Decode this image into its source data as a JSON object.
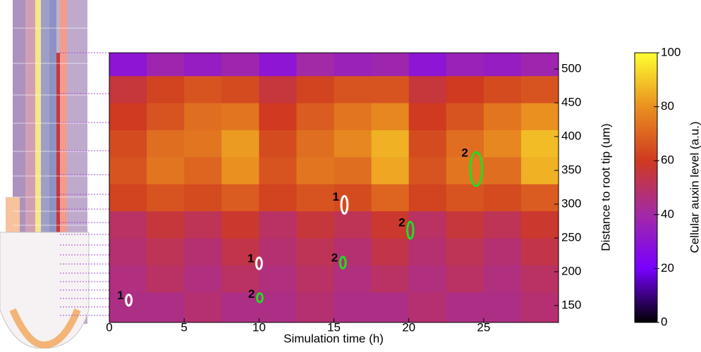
{
  "chart_data": {
    "type": "heatmap",
    "xlabel": "Simulation time (h)",
    "ylabel": "Distance to root tip (um)",
    "xlim": [
      0,
      30
    ],
    "xticks": [
      0,
      5,
      10,
      15,
      20,
      25
    ],
    "ylim": [
      125,
      524
    ],
    "yticks": [
      150,
      200,
      250,
      300,
      350,
      400,
      450,
      500
    ],
    "xbins": [
      0,
      2.5,
      5,
      7.5,
      10,
      12.5,
      15,
      17.5,
      20,
      22.5,
      25,
      27.5,
      30
    ],
    "ybins": [
      125,
      170,
      210,
      250,
      290,
      330,
      370,
      410,
      450,
      490,
      524
    ],
    "z": [
      [
        45,
        45,
        48,
        45,
        45,
        48,
        45,
        45,
        48,
        45,
        45,
        48
      ],
      [
        46,
        50,
        46,
        50,
        46,
        50,
        46,
        50,
        46,
        50,
        46,
        50
      ],
      [
        48,
        52,
        48,
        54,
        48,
        52,
        48,
        54,
        48,
        52,
        48,
        54
      ],
      [
        50,
        56,
        52,
        58,
        50,
        56,
        52,
        58,
        50,
        56,
        52,
        58
      ],
      [
        62,
        66,
        64,
        68,
        62,
        66,
        64,
        70,
        62,
        66,
        64,
        68
      ],
      [
        66,
        74,
        70,
        80,
        66,
        74,
        72,
        84,
        66,
        74,
        72,
        86
      ],
      [
        64,
        72,
        74,
        82,
        64,
        72,
        78,
        86,
        64,
        72,
        78,
        88
      ],
      [
        60,
        66,
        72,
        74,
        60,
        68,
        74,
        78,
        60,
        66,
        74,
        80
      ],
      [
        56,
        62,
        66,
        64,
        56,
        62,
        66,
        66,
        56,
        60,
        64,
        66
      ],
      [
        30,
        38,
        34,
        38,
        30,
        40,
        36,
        38,
        30,
        36,
        34,
        38
      ]
    ],
    "colormap": [
      "#000000",
      "#7800ff",
      "#a22aa6",
      "#cf3a20",
      "#ea9020",
      "#ffff30"
    ],
    "colorbar": {
      "label": "Cellular auxin level (a.u.)",
      "lim": [
        0,
        100
      ],
      "ticks": [
        0,
        20,
        40,
        60,
        80,
        100
      ]
    },
    "annotations": [
      {
        "label": "1",
        "x": 1.3,
        "y": [
          150,
          166
        ],
        "color": "#ffffff"
      },
      {
        "label": "2",
        "x": 10.05,
        "y": [
          155,
          168
        ],
        "color": "#22dd22"
      },
      {
        "label": "1",
        "x": 10.0,
        "y": [
          204,
          221
        ],
        "color": "#ffffff"
      },
      {
        "label": "2",
        "x": 15.6,
        "y": [
          205,
          222
        ],
        "color": "#22dd22"
      },
      {
        "label": "1",
        "x": 15.7,
        "y": [
          286,
          312
        ],
        "color": "#ffffff"
      },
      {
        "label": "2",
        "x": 20.1,
        "y": [
          249,
          274
        ],
        "color": "#22dd22"
      },
      {
        "label": "2",
        "x": 24.5,
        "y": [
          327,
          377
        ],
        "color": "#22dd22"
      }
    ]
  }
}
